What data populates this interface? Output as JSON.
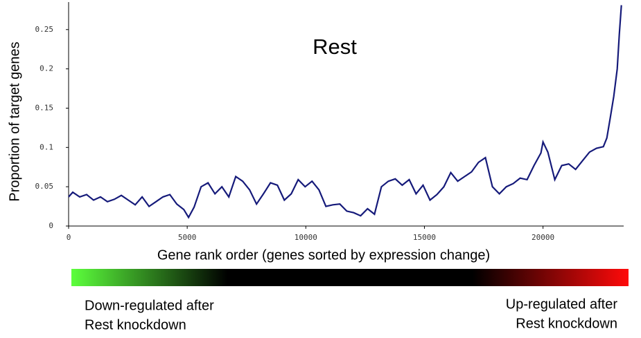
{
  "chart_data": {
    "type": "line",
    "title": "Rest",
    "xlabel": "Gene rank order (genes sorted by expression change)",
    "ylabel": "Proportion of target genes",
    "x": [
      0,
      175,
      468,
      760,
      1053,
      1345,
      1637,
      1930,
      2222,
      2515,
      2807,
      3099,
      3392,
      3684,
      3977,
      4269,
      4561,
      4854,
      5058,
      5292,
      5585,
      5877,
      6169,
      6462,
      6754,
      7047,
      7339,
      7632,
      7924,
      8216,
      8509,
      8801,
      9094,
      9386,
      9678,
      9971,
      10263,
      10556,
      10848,
      11140,
      11433,
      11725,
      12018,
      12310,
      12602,
      12895,
      13187,
      13480,
      13772,
      14064,
      14357,
      14649,
      14942,
      15234,
      15526,
      15819,
      16111,
      16404,
      16696,
      16988,
      17281,
      17573,
      17866,
      18158,
      18450,
      18743,
      19035,
      19328,
      19620,
      19912,
      20000,
      20204,
      20497,
      20789,
      21082,
      21374,
      21666,
      21959,
      22251,
      22544,
      22690,
      22836,
      22982,
      23128,
      23216,
      23304
    ],
    "series": [
      {
        "name": "Rest",
        "color": "#151a7a",
        "values": [
          0.037,
          0.043,
          0.037,
          0.04,
          0.033,
          0.037,
          0.031,
          0.034,
          0.039,
          0.033,
          0.027,
          0.037,
          0.025,
          0.031,
          0.037,
          0.04,
          0.028,
          0.021,
          0.011,
          0.024,
          0.05,
          0.055,
          0.041,
          0.05,
          0.037,
          0.063,
          0.057,
          0.046,
          0.028,
          0.041,
          0.055,
          0.052,
          0.033,
          0.041,
          0.059,
          0.05,
          0.057,
          0.046,
          0.025,
          0.027,
          0.028,
          0.019,
          0.017,
          0.013,
          0.022,
          0.015,
          0.05,
          0.057,
          0.06,
          0.052,
          0.059,
          0.041,
          0.052,
          0.033,
          0.04,
          0.05,
          0.068,
          0.057,
          0.063,
          0.069,
          0.081,
          0.087,
          0.05,
          0.041,
          0.05,
          0.054,
          0.061,
          0.059,
          0.077,
          0.093,
          0.107,
          0.094,
          0.059,
          0.077,
          0.079,
          0.072,
          0.083,
          0.094,
          0.099,
          0.101,
          0.112,
          0.138,
          0.165,
          0.2,
          0.244,
          0.281
        ]
      }
    ],
    "xlim": [
      0,
      23400
    ],
    "xticks": [
      0,
      5000,
      10000,
      15000,
      20000
    ],
    "ylim": [
      0,
      0.285
    ],
    "yticks": [
      0,
      0.05,
      0.1,
      0.15,
      0.2,
      0.25
    ],
    "annotations": [
      {
        "lines": [
          "Down-regulated after",
          "Rest knockdown"
        ]
      },
      {
        "lines": [
          "Up-regulated after",
          "Rest knockdown"
        ]
      }
    ]
  }
}
